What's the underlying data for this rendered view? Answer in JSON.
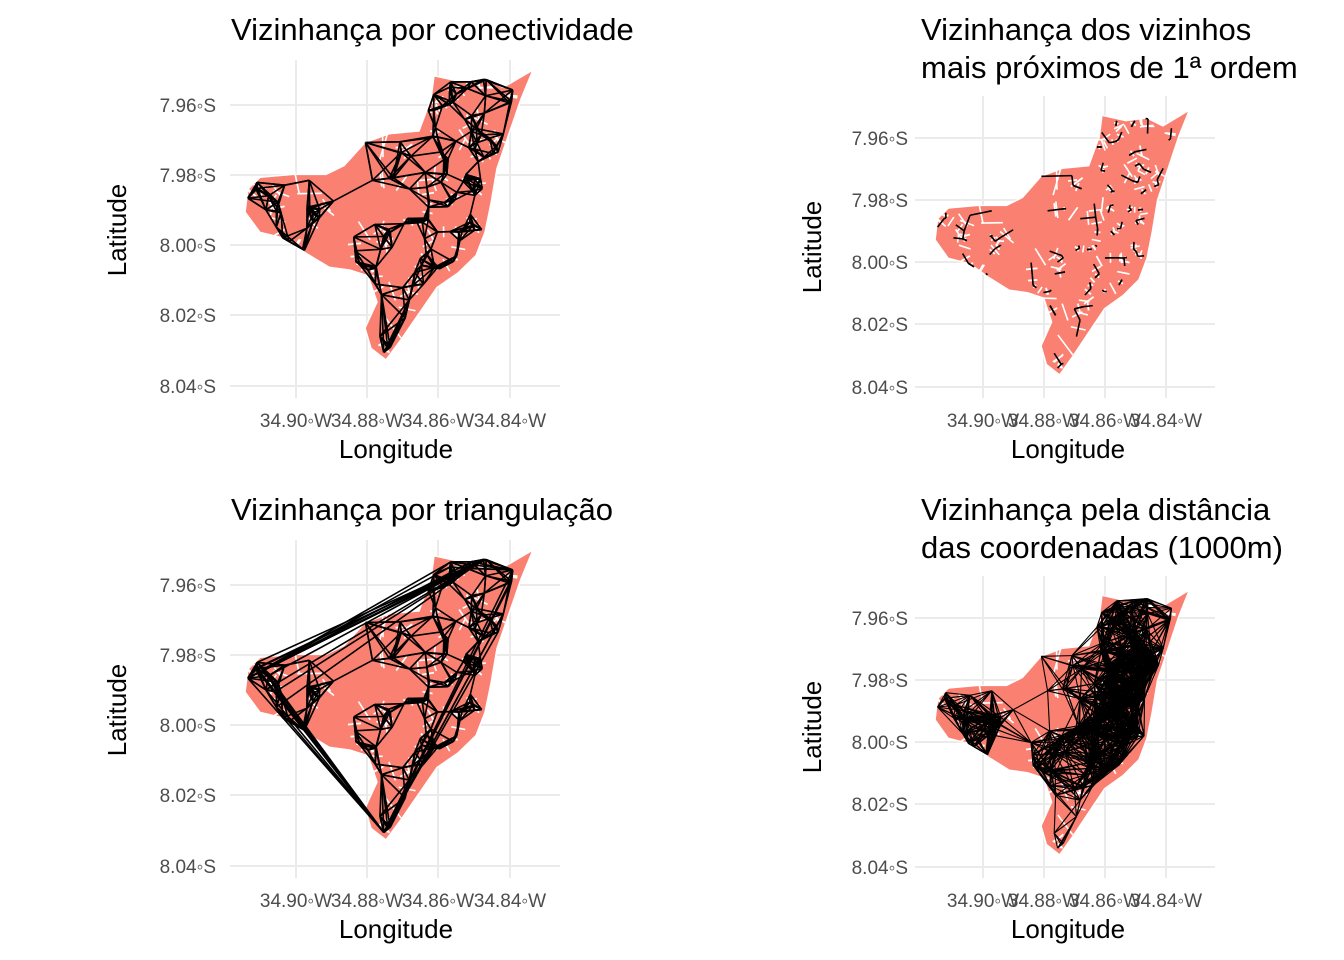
{
  "colors": {
    "region_fill": "#fa8072",
    "region_border": "#ffffff",
    "grid": "#ebebeb",
    "links": "#000000",
    "tick_text": "#4d4d4d"
  },
  "chart_data": [
    {
      "type": "map",
      "title": [
        "Vizinhança por conectividade"
      ],
      "xlabel": "Longitude",
      "ylabel": "Latitude",
      "x_ticks": [
        "34.90◦W",
        "34.88◦W",
        "34.86◦W",
        "34.84◦W"
      ],
      "y_ticks": [
        "7.96◦S",
        "7.98◦S",
        "8.00◦S",
        "8.02◦S",
        "8.04◦S"
      ],
      "neighbour_method": "contiguity",
      "grid": true
    },
    {
      "type": "map",
      "title": [
        "Vizinhança dos vizinhos",
        "mais próximos de 1ª ordem"
      ],
      "xlabel": "Longitude",
      "ylabel": "Latitude",
      "x_ticks": [
        "34.90◦W",
        "34.88◦W",
        "34.86◦W",
        "34.84◦W"
      ],
      "y_ticks": [
        "7.96◦S",
        "7.98◦S",
        "8.00◦S",
        "8.02◦S",
        "8.04◦S"
      ],
      "neighbour_method": "k-nearest-1",
      "grid": true
    },
    {
      "type": "map",
      "title": [
        "Vizinhança por triangulação"
      ],
      "xlabel": "Longitude",
      "ylabel": "Latitude",
      "x_ticks": [
        "34.90◦W",
        "34.88◦W",
        "34.86◦W",
        "34.84◦W"
      ],
      "y_ticks": [
        "7.96◦S",
        "7.98◦S",
        "8.00◦S",
        "8.02◦S",
        "8.04◦S"
      ],
      "neighbour_method": "triangulation",
      "grid": true
    },
    {
      "type": "map",
      "title": [
        "Vizinhança pela distância",
        " das coordenadas (1000m)"
      ],
      "xlabel": "Longitude",
      "ylabel": "Latitude",
      "x_ticks": [
        "34.90◦W",
        "34.88◦W",
        "34.86◦W",
        "34.84◦W"
      ],
      "y_ticks": [
        "7.96◦S",
        "7.98◦S",
        "8.00◦S",
        "8.02◦S",
        "8.04◦S"
      ],
      "neighbour_method": "distance-1000m",
      "grid": true
    }
  ]
}
